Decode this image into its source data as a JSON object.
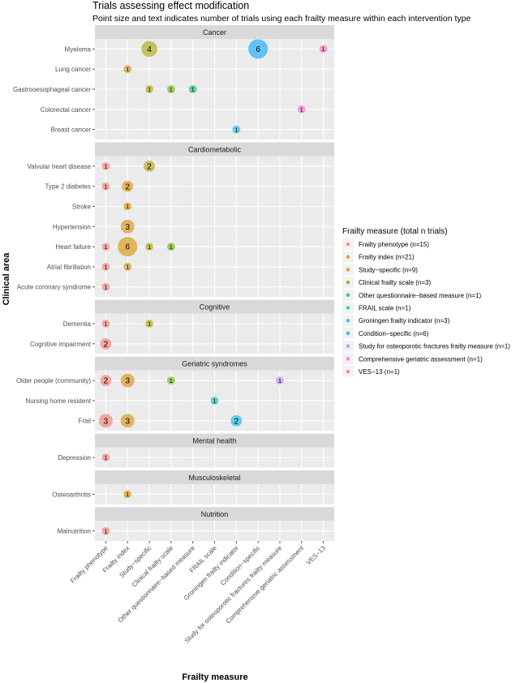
{
  "chart_data": {
    "type": "scatter",
    "title": "Trials assessing effect modification",
    "subtitle": "Point size and text indicates number of trials using each frailty measure within each intervention type",
    "xlabel": "Frailty measure",
    "ylabel": "Clinical area",
    "legend_title": "Frailty measure (total n trials)",
    "legend_position": "right",
    "grid": true,
    "x_categories": [
      "Frailty phenotype",
      "Frailty index",
      "Study−specific",
      "Clinical frailty scale",
      "Other questionnaire−based measure",
      "FRAIL scale",
      "Groningen frailty indicator",
      "Condition−specific",
      "Study for osteoporotic fractures frailty measure",
      "Comprehensive geriatric assessment",
      "VES−13"
    ],
    "legend_entries": [
      "Frailty phenotype (n=15)",
      "Frailty index (n=21)",
      "Study−specific (n=9)",
      "Clinical frailty scale (n=3)",
      "Other questionnaire−based measure (n=1)",
      "FRAIL scale (n=1)",
      "Groningen frailty indicator (n=3)",
      "Condition−specific (n=6)",
      "Study for osteoporotic fractures frailty measure (n=1)",
      "Comprehensive geriatric assessment (n=1)",
      "VES−13 (n=1)"
    ],
    "colors": [
      "#F8766D",
      "#DB8E00",
      "#AEA200",
      "#64B200",
      "#00BD5C",
      "#00C1A7",
      "#00BADE",
      "#00A6FF",
      "#B385FF",
      "#EF67EB",
      "#FF63B6"
    ],
    "facets": [
      {
        "name": "Cancer",
        "rows": [
          "Myeloma",
          "Lung cancer",
          "Gastrooesophageal cancer",
          "Colorectal cancer",
          "Breast cancer"
        ],
        "points": [
          {
            "row": "Myeloma",
            "measure": 2,
            "n": 4
          },
          {
            "row": "Myeloma",
            "measure": 7,
            "n": 6
          },
          {
            "row": "Myeloma",
            "measure": 10,
            "n": 1
          },
          {
            "row": "Lung cancer",
            "measure": 1,
            "n": 1
          },
          {
            "row": "Gastrooesophageal cancer",
            "measure": 2,
            "n": 1
          },
          {
            "row": "Gastrooesophageal cancer",
            "measure": 3,
            "n": 1
          },
          {
            "row": "Gastrooesophageal cancer",
            "measure": 4,
            "n": 1
          },
          {
            "row": "Colorectal cancer",
            "measure": 9,
            "n": 1
          },
          {
            "row": "Breast cancer",
            "measure": 6,
            "n": 1
          }
        ]
      },
      {
        "name": "Cardiometabolic",
        "rows": [
          "Valvular heart disease",
          "Type 2 diabetes",
          "Stroke",
          "Hypertension",
          "Heart failure",
          "Atrial fibrillation",
          "Acute coronary syndrome"
        ],
        "points": [
          {
            "row": "Valvular heart disease",
            "measure": 0,
            "n": 1
          },
          {
            "row": "Valvular heart disease",
            "measure": 2,
            "n": 2
          },
          {
            "row": "Type 2 diabetes",
            "measure": 0,
            "n": 1
          },
          {
            "row": "Type 2 diabetes",
            "measure": 1,
            "n": 2
          },
          {
            "row": "Stroke",
            "measure": 1,
            "n": 1
          },
          {
            "row": "Hypertension",
            "measure": 1,
            "n": 3
          },
          {
            "row": "Heart failure",
            "measure": 0,
            "n": 1
          },
          {
            "row": "Heart failure",
            "measure": 1,
            "n": 6
          },
          {
            "row": "Heart failure",
            "measure": 2,
            "n": 1
          },
          {
            "row": "Heart failure",
            "measure": 3,
            "n": 1
          },
          {
            "row": "Atrial fibrillation",
            "measure": 0,
            "n": 1
          },
          {
            "row": "Atrial fibrillation",
            "measure": 1,
            "n": 1
          },
          {
            "row": "Acute coronary syndrome",
            "measure": 0,
            "n": 1
          }
        ]
      },
      {
        "name": "Cognitive",
        "rows": [
          "Dementia",
          "Cognitive impairment"
        ],
        "points": [
          {
            "row": "Dementia",
            "measure": 0,
            "n": 1
          },
          {
            "row": "Dementia",
            "measure": 2,
            "n": 1
          },
          {
            "row": "Cognitive impairment",
            "measure": 0,
            "n": 2
          }
        ]
      },
      {
        "name": "Geriatric syndromes",
        "rows": [
          "Older people (community)",
          "Nursing home resident",
          "Frail"
        ],
        "points": [
          {
            "row": "Older people (community)",
            "measure": 0,
            "n": 2
          },
          {
            "row": "Older people (community)",
            "measure": 1,
            "n": 3
          },
          {
            "row": "Older people (community)",
            "measure": 3,
            "n": 1
          },
          {
            "row": "Older people (community)",
            "measure": 8,
            "n": 1
          },
          {
            "row": "Nursing home resident",
            "measure": 5,
            "n": 1
          },
          {
            "row": "Frail",
            "measure": 0,
            "n": 3
          },
          {
            "row": "Frail",
            "measure": 1,
            "n": 3
          },
          {
            "row": "Frail",
            "measure": 6,
            "n": 2
          }
        ]
      },
      {
        "name": "Mental health",
        "rows": [
          "Depression"
        ],
        "points": [
          {
            "row": "Depression",
            "measure": 0,
            "n": 1
          }
        ]
      },
      {
        "name": "Musculoskeletal",
        "rows": [
          "Osteoarthritis"
        ],
        "points": [
          {
            "row": "Osteoarthritis",
            "measure": 1,
            "n": 1
          }
        ]
      },
      {
        "name": "Nutrition",
        "rows": [
          "Malnutrition"
        ],
        "points": [
          {
            "row": "Malnutrition",
            "measure": 0,
            "n": 1
          }
        ]
      }
    ]
  }
}
